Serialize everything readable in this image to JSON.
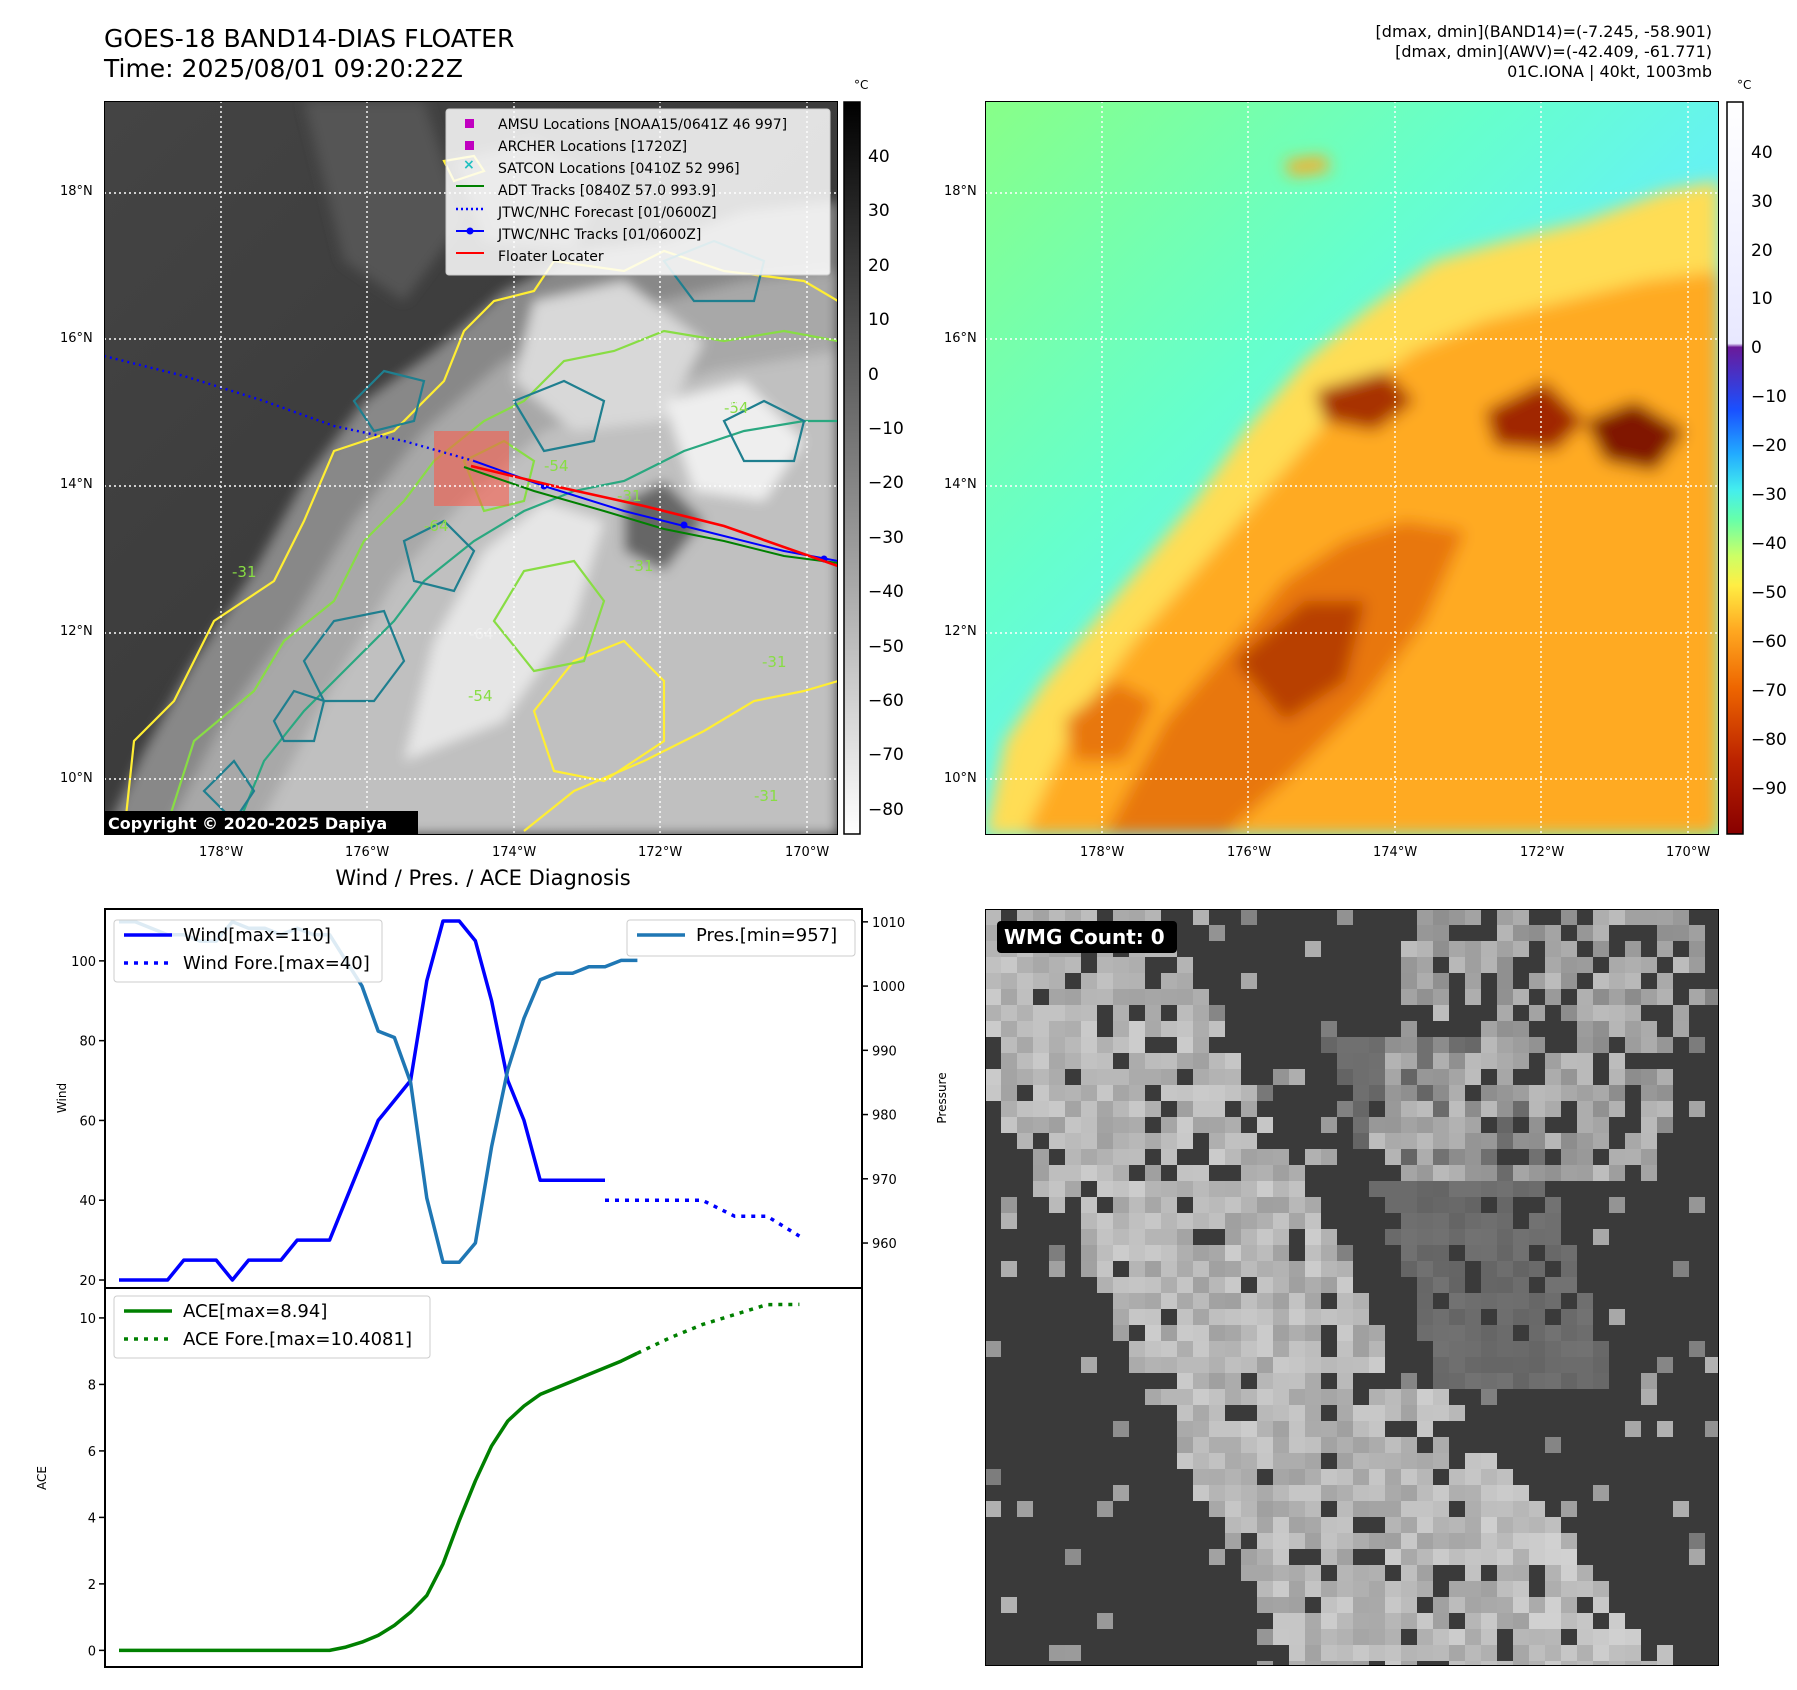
{
  "header": {
    "title_line1": "GOES-18 BAND14-DIAS FLOATER",
    "title_line2": "Time: 2025/08/01 09:20:22Z",
    "info_line1": "[dmax, dmin](BAND14)=(-7.245, -58.901)",
    "info_line2": "[dmax, dmin](AWV)=(-42.409, -61.771)",
    "info_line3": "01C.IONA | 40kt, 1003mb"
  },
  "map_axes": {
    "lat_labels": [
      "18°N",
      "16°N",
      "14°N",
      "12°N",
      "10°N"
    ],
    "lon_labels": [
      "178°W",
      "176°W",
      "174°W",
      "172°W",
      "170°W"
    ]
  },
  "ir_panel": {
    "colorbar_unit": "°C",
    "colorbar_ticks": [
      "40",
      "30",
      "20",
      "10",
      "0",
      "−10",
      "−20",
      "−30",
      "−40",
      "−50",
      "−60",
      "−70",
      "−80"
    ],
    "copyright": "Copyright © 2020-2025 Dapiya",
    "contour_labels": [
      "-54",
      "-64",
      "-64",
      "-54",
      "-31",
      "-31",
      "-64",
      "-54",
      "-31",
      "-31",
      "-31"
    ],
    "legend": [
      {
        "label": "AMSU Locations [NOAA15/0641Z 46 997]",
        "color": "#c000c0",
        "marker": "square"
      },
      {
        "label": "ARCHER Locations [1720Z]",
        "color": "#c000c0",
        "marker": "square"
      },
      {
        "label": "SATCON Locations [0410Z 52 996]",
        "color": "#20c0c0",
        "marker": "x"
      },
      {
        "label": "ADT Tracks [0840Z 57.0 993.9]",
        "color": "#008000",
        "marker": "line"
      },
      {
        "label": "JTWC/NHC Forecast [01/0600Z]",
        "color": "#0000ff",
        "marker": "dotted"
      },
      {
        "label": "JTWC/NHC Tracks [01/0600Z]",
        "color": "#0000ff",
        "marker": "line-dot"
      },
      {
        "label": "Floater Locater",
        "color": "#ff0000",
        "marker": "line"
      }
    ]
  },
  "awv_panel": {
    "colorbar_unit": "°C",
    "colorbar_ticks": [
      "40",
      "30",
      "20",
      "10",
      "0",
      "−10",
      "−20",
      "−30",
      "−40",
      "−50",
      "−60",
      "−70",
      "−80",
      "−90"
    ]
  },
  "wmg_panel": {
    "label": "WMG Count: 0"
  },
  "chart_data": [
    {
      "type": "line",
      "title": "Wind / Pres. / ACE Diagnosis",
      "ylabel": "Wind",
      "ylabel_right": "Pressure",
      "ylim": [
        18,
        113
      ],
      "ylim_right": [
        953,
        1012
      ],
      "yticks": [
        20,
        40,
        60,
        80,
        100
      ],
      "yticks_right": [
        960,
        970,
        980,
        990,
        1000,
        1010
      ],
      "legend_left": [
        "Wind[max=110]",
        "Wind Fore.[max=40]"
      ],
      "legend_right": [
        "Pres.[min=957]"
      ],
      "colors": {
        "wind": "#0000ff",
        "pressure": "#1f77b4"
      },
      "series": [
        {
          "name": "Wind[max=110]",
          "axis": "left",
          "style": "solid",
          "x": [
            0,
            1,
            2,
            3,
            4,
            5,
            6,
            7,
            8,
            9,
            10,
            11,
            12,
            13,
            14,
            15,
            16,
            17,
            18,
            19,
            20,
            21,
            22,
            23,
            24,
            25,
            26,
            27,
            28,
            29,
            30
          ],
          "values": [
            20,
            20,
            20,
            20,
            25,
            25,
            25,
            20,
            25,
            25,
            25,
            30,
            30,
            30,
            40,
            50,
            60,
            65,
            70,
            95,
            110,
            110,
            105,
            90,
            70,
            60,
            45,
            45,
            45,
            45,
            45
          ]
        },
        {
          "name": "Wind Fore.[max=40]",
          "axis": "left",
          "style": "dotted",
          "x": [
            30,
            31,
            33,
            36,
            38,
            40,
            42
          ],
          "values": [
            40,
            40,
            40,
            40,
            36,
            36,
            31
          ]
        },
        {
          "name": "Pres.[min=957]",
          "axis": "right",
          "style": "solid",
          "x": [
            0,
            1,
            2,
            3,
            4,
            5,
            6,
            7,
            8,
            9,
            10,
            11,
            12,
            13,
            14,
            15,
            16,
            17,
            18,
            19,
            20,
            21,
            22,
            23,
            24,
            25,
            26,
            27,
            28,
            29,
            30,
            31,
            32
          ],
          "values": [
            1010,
            1010,
            1009,
            1008,
            1008,
            1007,
            1007,
            1010,
            1009,
            1009,
            1008,
            1009,
            1008,
            1008,
            1004,
            1000,
            993,
            992,
            985,
            967,
            957,
            957,
            960,
            975,
            987,
            995,
            1001,
            1002,
            1002,
            1003,
            1003,
            1004,
            1004
          ]
        }
      ]
    },
    {
      "type": "line",
      "ylabel": "ACE",
      "ylim": [
        -0.5,
        10.9
      ],
      "yticks": [
        0,
        2,
        4,
        6,
        8,
        10
      ],
      "legend": [
        "ACE[max=8.94]",
        "ACE Fore.[max=10.4081]"
      ],
      "colors": {
        "ace": "#008000"
      },
      "series": [
        {
          "name": "ACE[max=8.94]",
          "style": "solid",
          "x": [
            0,
            1,
            2,
            3,
            4,
            5,
            6,
            7,
            8,
            9,
            10,
            11,
            12,
            13,
            14,
            15,
            16,
            17,
            18,
            19,
            20,
            21,
            22,
            23,
            24,
            25,
            26,
            27,
            28,
            29,
            30,
            31,
            32
          ],
          "values": [
            0,
            0,
            0,
            0,
            0,
            0,
            0,
            0,
            0,
            0,
            0,
            0,
            0,
            0,
            0.1,
            0.25,
            0.45,
            0.75,
            1.15,
            1.65,
            2.6,
            3.9,
            5.1,
            6.15,
            6.9,
            7.35,
            7.7,
            7.9,
            8.1,
            8.3,
            8.5,
            8.7,
            8.94
          ]
        },
        {
          "name": "ACE Fore.[max=10.4081]",
          "style": "dotted",
          "x": [
            32,
            34,
            36,
            38,
            40,
            42
          ],
          "values": [
            8.94,
            9.4,
            9.8,
            10.1,
            10.4,
            10.4081
          ]
        }
      ]
    }
  ]
}
